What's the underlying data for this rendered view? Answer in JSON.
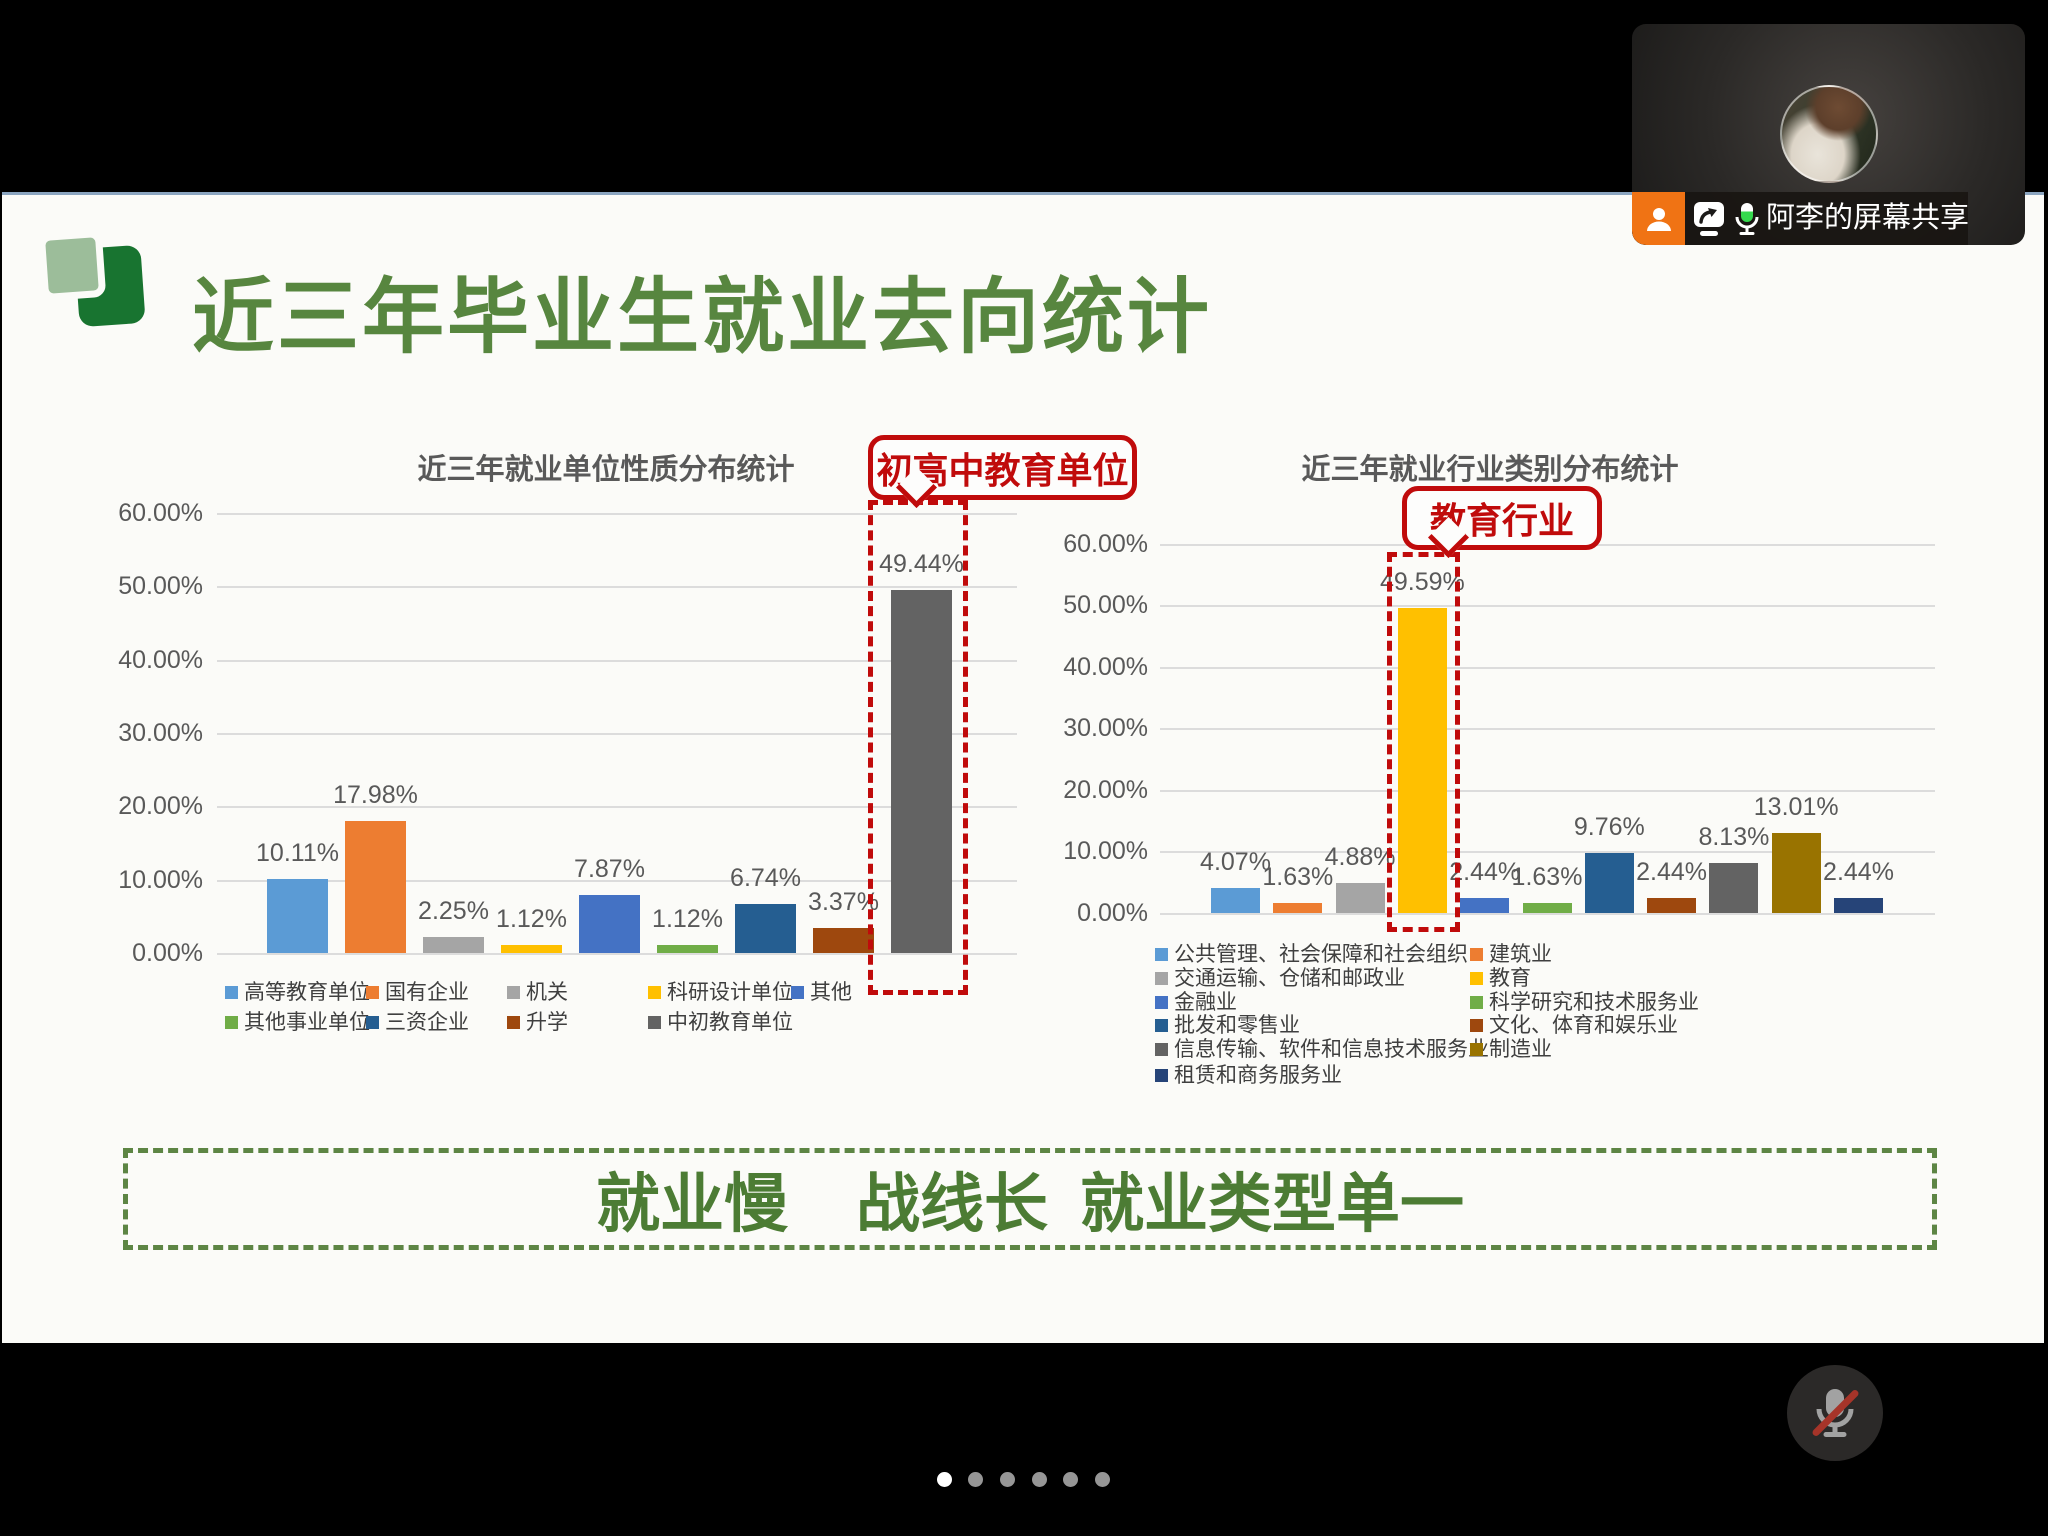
{
  "meeting": {
    "share_label": "阿李的屏幕共享",
    "mic_muted": true,
    "accent_orange": "#f07314",
    "mic_level_green": "#35d94e"
  },
  "slide": {
    "title": "近三年毕业生就业去向统计",
    "title_color": "#57863f",
    "conclusion": {
      "part1": "就业慢",
      "part2": "战线长",
      "part3": "就业类型单一"
    },
    "conclusion_color": "#4c7c34",
    "annotation_red": "#c00b0b"
  },
  "chart_data": [
    {
      "type": "bar",
      "title": "近三年就业单位性质分布统计",
      "categories": [
        "高等教育单位",
        "国有企业",
        "机关",
        "科研设计单位",
        "其他",
        "其他事业单位",
        "三资企业",
        "升学",
        "中初教育单位"
      ],
      "values": [
        10.11,
        17.98,
        2.25,
        1.12,
        7.87,
        1.12,
        6.74,
        3.37,
        49.44
      ],
      "labels": [
        "10.11%",
        "17.98%",
        "2.25%",
        "1.12%",
        "7.87%",
        "1.12%",
        "6.74%",
        "3.37%",
        "49.44%"
      ],
      "colors": [
        "#5B9BD5",
        "#ED7D31",
        "#A5A5A5",
        "#FFC000",
        "#4472C4",
        "#70AD47",
        "#255E91",
        "#9E480E",
        "#636363"
      ],
      "xlabel": "",
      "ylabel": "",
      "ylim": [
        0,
        60
      ],
      "ytick_step": 10,
      "grid": true,
      "legend_position": "bottom",
      "yticks": [
        "0.00%",
        "10.00%",
        "20.00%",
        "30.00%",
        "40.00%",
        "50.00%",
        "60.00%"
      ],
      "annotation": {
        "callout": "初高中教育单位",
        "highlight_index": 8
      }
    },
    {
      "type": "bar",
      "title": "近三年就业行业类别分布统计",
      "categories": [
        "公共管理、社会保障和社会组织",
        "建筑业",
        "交通运输、仓储和邮政业",
        "教育",
        "金融业",
        "科学研究和技术服务业",
        "批发和零售业",
        "文化、体育和娱乐业",
        "信息传输、软件和信息技术服务业",
        "制造业",
        "租赁和商务服务业"
      ],
      "values": [
        4.07,
        1.63,
        4.88,
        49.59,
        2.44,
        1.63,
        9.76,
        2.44,
        8.13,
        13.01,
        2.44
      ],
      "labels": [
        "4.07%",
        "1.63%",
        "4.88%",
        "49.59%",
        "2.44%",
        "1.63%",
        "9.76%",
        "2.44%",
        "8.13%",
        "13.01%",
        "2.44%"
      ],
      "colors": [
        "#5B9BD5",
        "#ED7D31",
        "#A5A5A5",
        "#FFC000",
        "#4472C4",
        "#70AD47",
        "#255E91",
        "#9E480E",
        "#636363",
        "#997300",
        "#264478"
      ],
      "xlabel": "",
      "ylabel": "",
      "ylim": [
        0,
        60
      ],
      "ytick_step": 10,
      "grid": true,
      "legend_position": "bottom",
      "yticks": [
        "0.00%",
        "10.00%",
        "20.00%",
        "30.00%",
        "40.00%",
        "50.00%",
        "60.00%"
      ],
      "annotation": {
        "callout": "教育行业",
        "highlight_index": 3
      }
    }
  ],
  "pagination": {
    "count": 6,
    "active_index": 0
  }
}
